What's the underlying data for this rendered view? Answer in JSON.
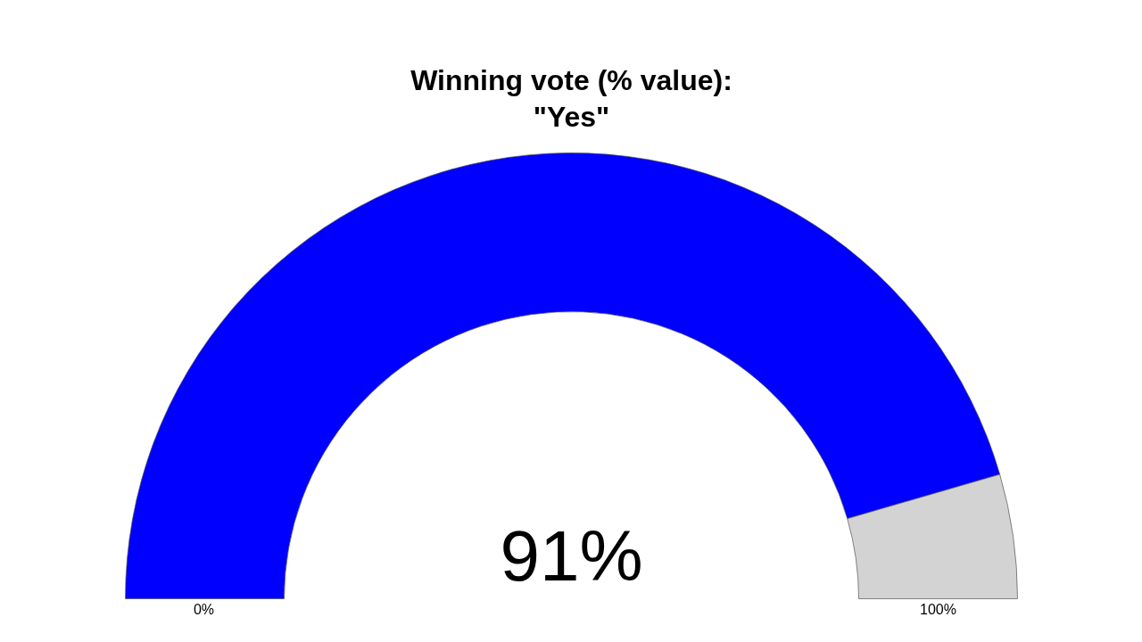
{
  "chart_data": {
    "type": "donut",
    "title": "Winning vote (% value):\n\"Yes\"",
    "categories": [
      null,
      null
    ],
    "values": [
      91,
      9
    ],
    "colors": [
      "#0000ff",
      "#d3d3d3"
    ],
    "annotations": [
      "91%",
      "0%",
      "100%"
    ]
  }
}
